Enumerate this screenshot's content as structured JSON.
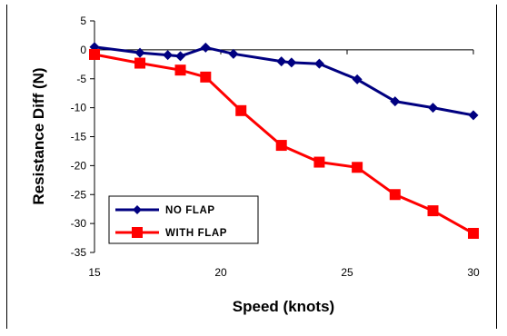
{
  "chart_data": {
    "type": "line",
    "title": "",
    "xlabel": "Speed (knots)",
    "ylabel": "Resistance Diff (N)",
    "xlim": [
      15,
      30
    ],
    "ylim": [
      -35,
      5
    ],
    "x_ticks": [
      15,
      20,
      25,
      30
    ],
    "y_ticks": [
      5,
      0,
      -5,
      -10,
      -15,
      -20,
      -25,
      -30,
      -35
    ],
    "grid": false,
    "legend_position": "bottom-left",
    "series": [
      {
        "name": "NO FLAP",
        "color": "#000080",
        "marker": "diamond",
        "x": [
          15,
          16.8,
          17.9,
          18.4,
          19.4,
          20.5,
          22.4,
          22.8,
          23.9,
          25.4,
          26.9,
          28.4,
          30
        ],
        "y": [
          0.5,
          -0.5,
          -0.9,
          -1.1,
          0.4,
          -0.7,
          -2.0,
          -2.2,
          -2.4,
          -5.1,
          -8.9,
          -10.0,
          -11.3
        ]
      },
      {
        "name": "WITH FLAP",
        "color": "#ff0000",
        "marker": "square",
        "x": [
          15,
          16.8,
          18.4,
          19.4,
          20.8,
          22.4,
          23.9,
          25.4,
          26.9,
          28.4,
          30
        ],
        "y": [
          -0.8,
          -2.3,
          -3.5,
          -4.7,
          -10.5,
          -16.5,
          -19.4,
          -20.3,
          -25.0,
          -27.8,
          -31.7
        ]
      }
    ]
  }
}
